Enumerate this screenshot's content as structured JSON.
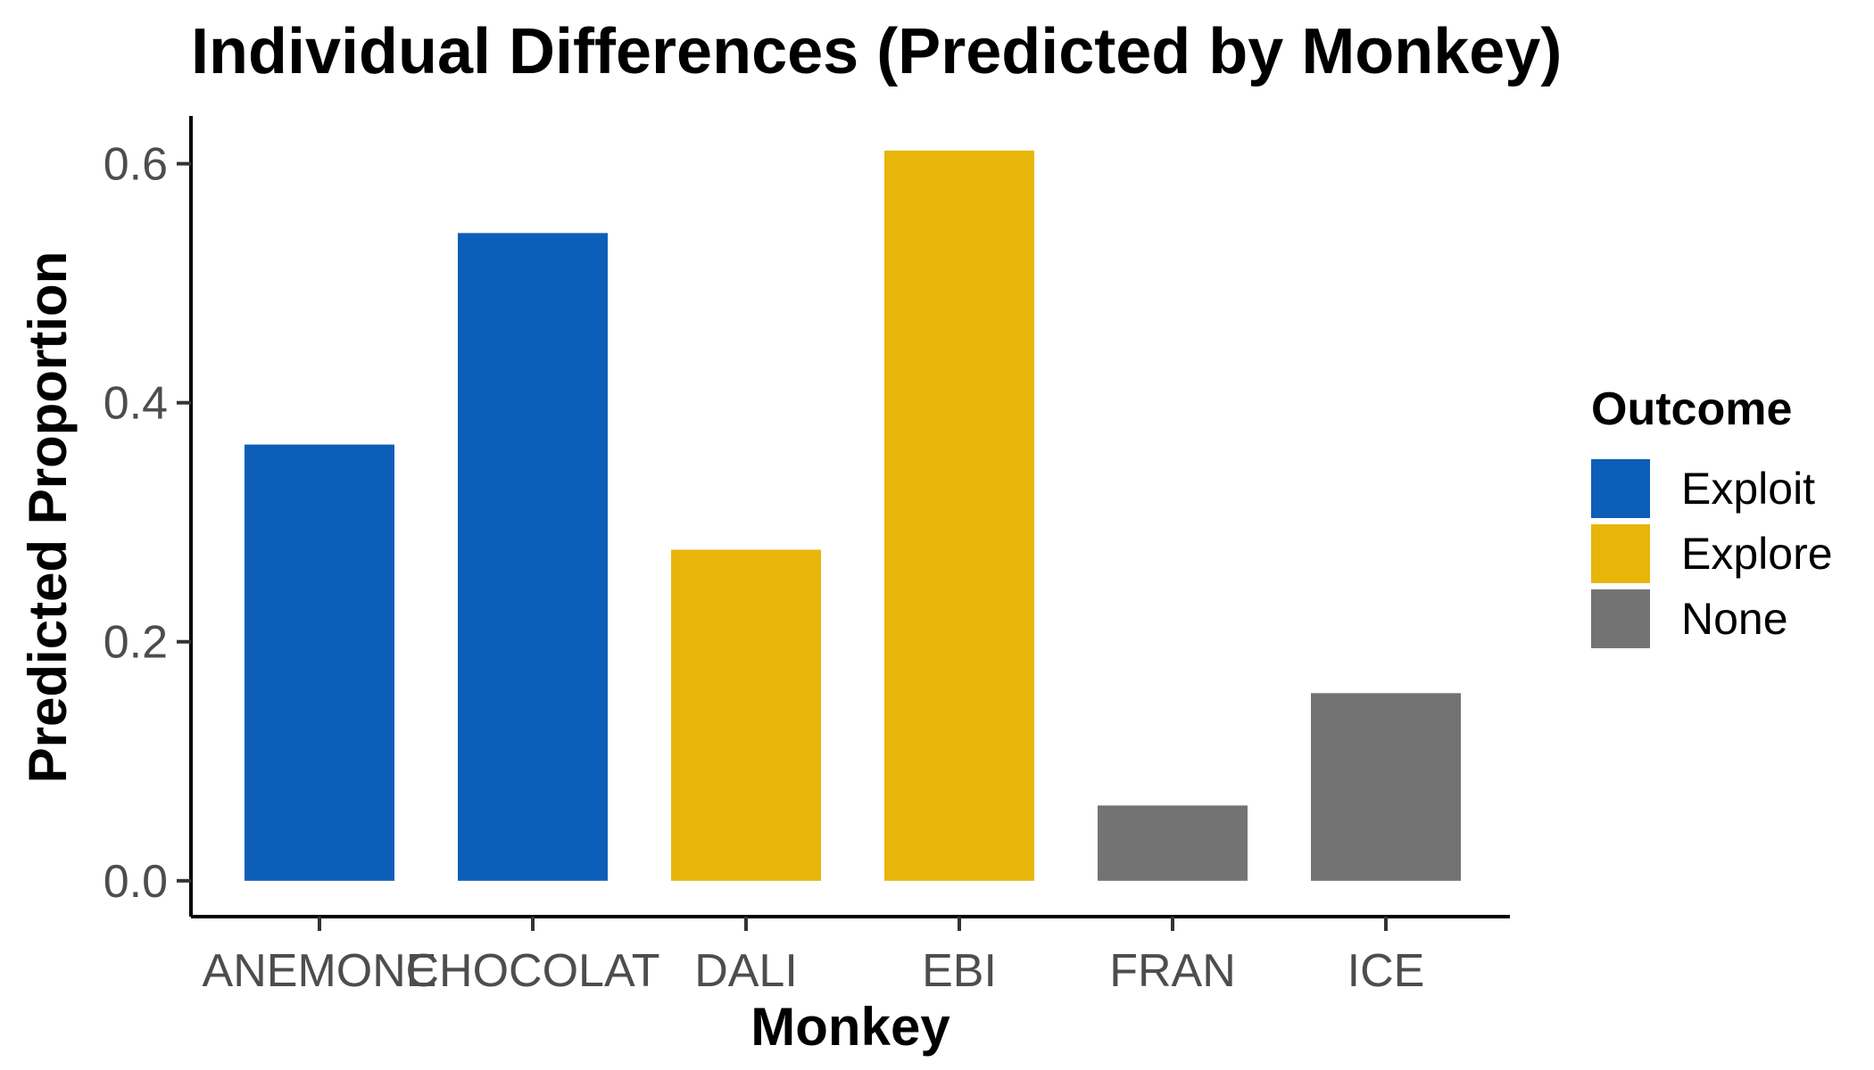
{
  "chart_data": {
    "type": "bar",
    "title": "Individual Differences (Predicted by Monkey)",
    "xlabel": "Monkey",
    "ylabel": "Predicted Proportion",
    "categories": [
      "ANEMONE",
      "CHOCOLAT",
      "DALI",
      "EBI",
      "FRAN",
      "ICE"
    ],
    "values": [
      0.365,
      0.542,
      0.277,
      0.611,
      0.063,
      0.157
    ],
    "outcome": [
      "Exploit",
      "Exploit",
      "Explore",
      "Explore",
      "None",
      "None"
    ],
    "ylim": [
      -0.03,
      0.64
    ],
    "yticks": [
      0.0,
      0.2,
      0.4,
      0.6
    ],
    "ytick_labels": [
      "0.0",
      "0.2",
      "0.4",
      "0.6"
    ],
    "grid": false,
    "legend": {
      "title": "Outcome",
      "placement": "right",
      "entries": [
        {
          "label": "Exploit",
          "color": "#0D5EB8"
        },
        {
          "label": "Explore",
          "color": "#E8B50A"
        },
        {
          "label": "None",
          "color": "#737373"
        }
      ]
    }
  }
}
